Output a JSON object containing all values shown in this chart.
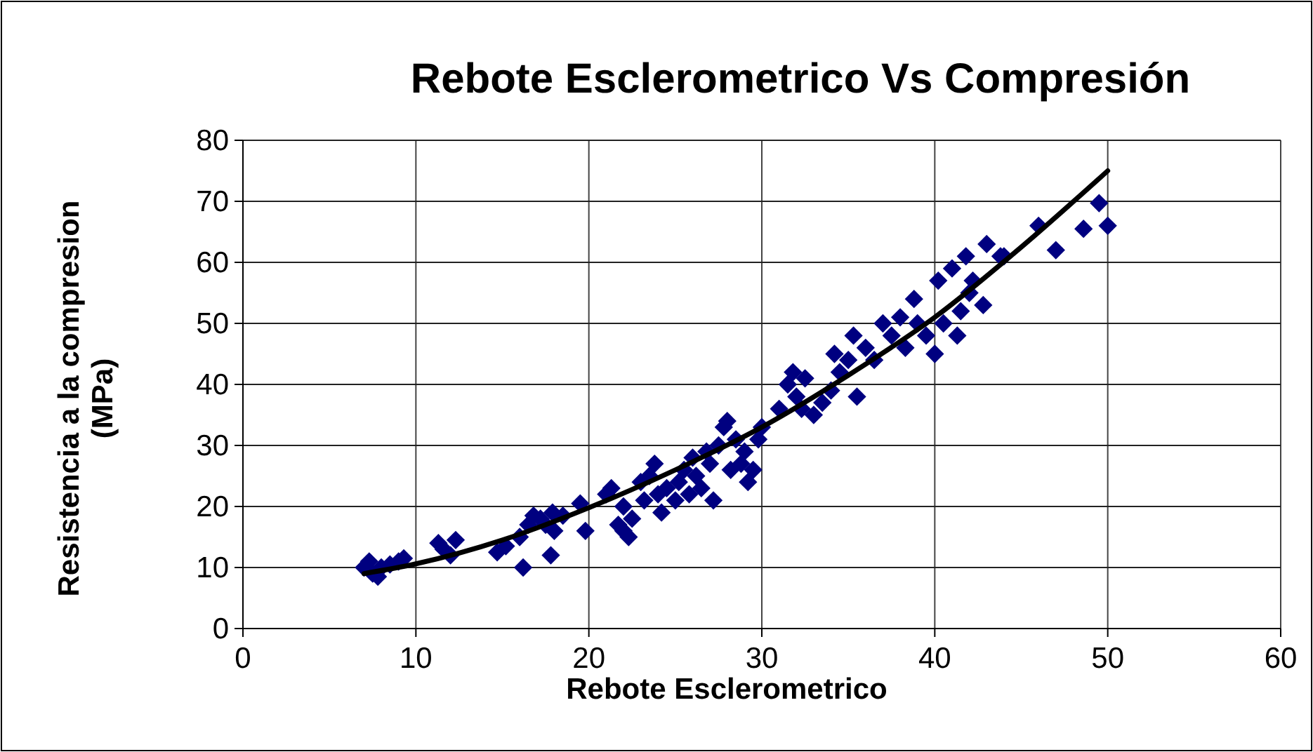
{
  "chart_data": {
    "type": "scatter",
    "title": "Rebote Esclerometrico Vs Compresión",
    "xlabel": "Rebote Esclerometrico",
    "ylabel": "Resistencia a la compresion (MPa)",
    "xlim": [
      0,
      60
    ],
    "xticks": [
      0,
      10,
      20,
      30,
      40,
      50,
      60
    ],
    "ylim": [
      0,
      80
    ],
    "yticks": [
      0,
      10,
      20,
      30,
      40,
      50,
      60,
      70,
      80
    ],
    "grid": true,
    "series": [
      {
        "marker": "diamond",
        "color": "#000080",
        "x": [
          7,
          7.3,
          7.5,
          7.8,
          8,
          8.5,
          9,
          9.3,
          11.3,
          11.6,
          12,
          12.3,
          14.7,
          15.2,
          16,
          16.2,
          16.5,
          16.8,
          17.2,
          17.5,
          17.8,
          17.9,
          18,
          18.5,
          19.5,
          19.8,
          21,
          21.3,
          21.7,
          22,
          22.3,
          22,
          22.5,
          23,
          23.2,
          23.5,
          23.8,
          24,
          24.2,
          24.5,
          25,
          25.2,
          25.5,
          25.8,
          26,
          26.2,
          26.5,
          26.8,
          27,
          27.2,
          27.5,
          27.8,
          28,
          28.2,
          28.5,
          28.8,
          29,
          29.2,
          29.5,
          29.8,
          30,
          31,
          31.5,
          31.8,
          32,
          32.3,
          32.5,
          33,
          33.5,
          34,
          34.2,
          34.5,
          35,
          35.3,
          35.5,
          36,
          36.5,
          37,
          37.5,
          38,
          38.3,
          38.8,
          39,
          39.5,
          40,
          40.2,
          40.5,
          41,
          41.3,
          41.5,
          41.8,
          42,
          42.2,
          42.8,
          43,
          43.8,
          44,
          46,
          47,
          48.6,
          49.5,
          50
        ],
        "values": [
          10,
          11,
          9,
          8.5,
          10,
          10.5,
          11,
          11.5,
          14,
          13,
          12,
          14.5,
          12.5,
          13.5,
          15,
          10,
          17,
          18.5,
          18,
          17,
          12,
          19,
          16,
          18.5,
          20.5,
          16,
          22,
          23,
          17,
          16,
          15,
          20,
          18,
          24,
          21,
          25,
          27,
          22,
          19,
          23,
          21,
          24,
          26,
          22,
          28,
          25,
          23,
          29,
          27,
          21,
          30,
          33,
          34,
          26,
          31,
          27,
          29,
          24,
          26,
          31,
          33,
          36,
          40,
          42,
          38,
          36,
          41,
          35,
          37,
          39,
          45,
          42,
          44,
          48,
          38,
          46,
          44,
          50,
          48,
          51,
          46,
          54,
          50,
          48,
          45,
          57,
          50,
          59,
          48,
          52,
          61,
          55,
          57,
          53,
          63,
          61,
          61,
          66,
          62,
          65.5,
          69.7,
          66
        ]
      },
      {
        "type": "line",
        "color": "#000000",
        "x": [
          7,
          10,
          15,
          20,
          25,
          30,
          35,
          40,
          45,
          50
        ],
        "values": [
          9,
          10.6,
          14.5,
          19.8,
          26,
          33,
          41.5,
          51,
          62.5,
          75
        ]
      }
    ]
  }
}
